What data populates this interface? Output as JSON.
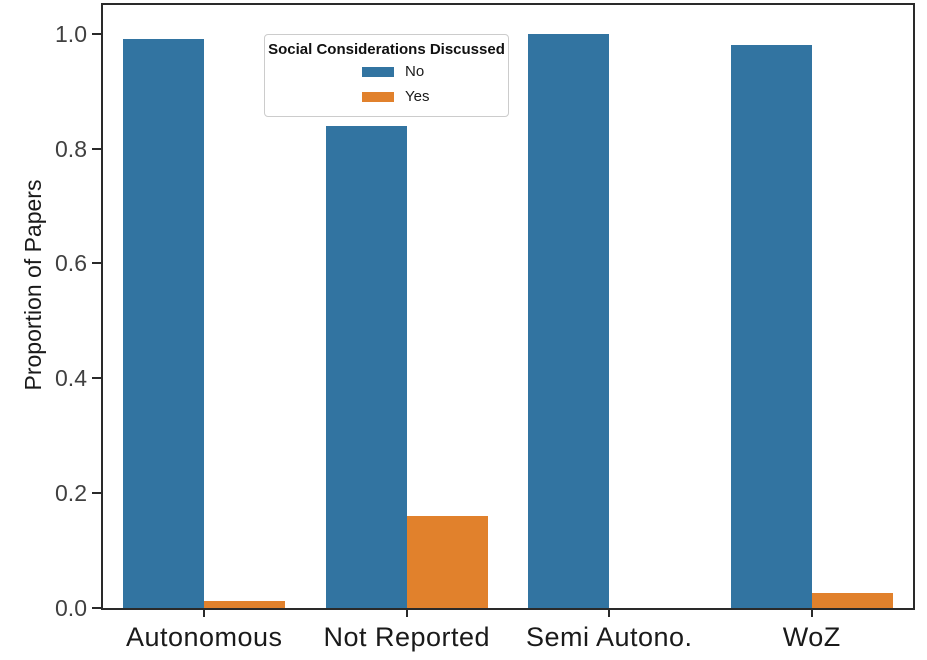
{
  "chart_data": {
    "type": "bar",
    "title": "",
    "xlabel": "",
    "ylabel": "Proportion of Papers",
    "categories": [
      "Autonomous",
      "Not Reported",
      "Semi Autono.",
      "WoZ"
    ],
    "series": [
      {
        "name": "No",
        "color": "#3274a1",
        "values": [
          0.99,
          0.84,
          1.0,
          0.98
        ]
      },
      {
        "name": "Yes",
        "color": "#e1812c",
        "values": [
          0.012,
          0.16,
          0.0,
          0.027
        ]
      }
    ],
    "yticks": [
      "0.0",
      "0.2",
      "0.4",
      "0.6",
      "0.8",
      "1.0"
    ],
    "ylim": [
      0,
      1.05
    ],
    "grid": false,
    "bar_group_width_fraction": 0.8,
    "axis_color": "#2a2a2a",
    "legend": {
      "title": "Social Considerations Discussed",
      "position": "upper left inside",
      "entries": [
        {
          "label": "No",
          "color": "#3274a1"
        },
        {
          "label": "Yes",
          "color": "#e1812c"
        }
      ]
    }
  }
}
